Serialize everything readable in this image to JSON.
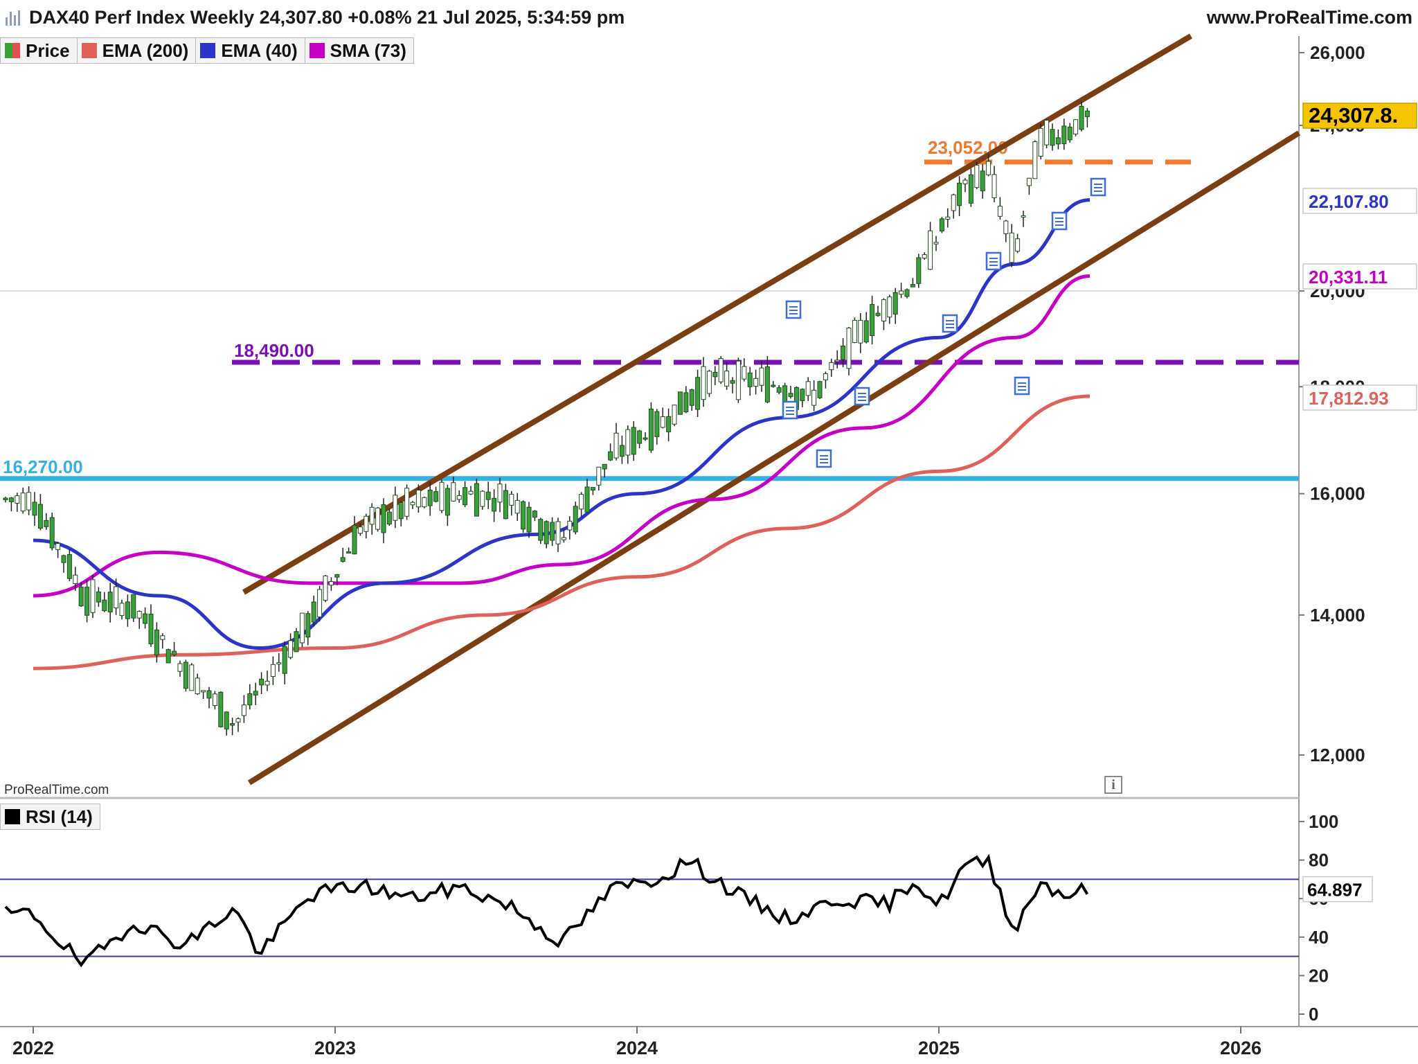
{
  "header": {
    "title": "DAX40 Perf Index Weekly 24,307.80 +0.08% 21 Jul 2025, 5:34:59 pm",
    "site": "www.ProRealTime.com"
  },
  "legend": [
    {
      "label": "Price",
      "color": "#3aa13a"
    },
    {
      "label": "EMA (200)",
      "color": "#e0605a"
    },
    {
      "label": "EMA (40)",
      "color": "#2b35c9"
    },
    {
      "label": "SMA (73)",
      "color": "#c600c6"
    }
  ],
  "rsi_legend": {
    "label": "RSI (14)",
    "color": "#000000"
  },
  "watermark": "ProRealTime.com",
  "colors": {
    "up": "#3aa13a",
    "down": "#c0392b",
    "channel": "#7a3e10",
    "ema200": "#e0605a",
    "ema40": "#2b35c9",
    "sma73": "#c600c6",
    "level_blue": "#38b0e6",
    "level_purple": "#7a10b8",
    "level_orange": "#f07a30",
    "last_price_bg": "#f6c500"
  },
  "price_axis": {
    "ticks": [
      "26,000",
      "24,000",
      "20,000",
      "18,000",
      "16,000",
      "14,000",
      "12,000"
    ],
    "tags": [
      {
        "text": "24,307.8.",
        "color": "#000000",
        "bg": "#f6c500"
      },
      {
        "text": "22,107.80",
        "color": "#2b35c9",
        "bg": "#ffffff"
      },
      {
        "text": "20,331.11",
        "color": "#c600c6",
        "bg": "#ffffff"
      },
      {
        "text": "17,812.93",
        "color": "#e0605a",
        "bg": "#ffffff"
      }
    ]
  },
  "levels": [
    {
      "value": "16,270.00",
      "color": "#38b0e6"
    },
    {
      "value": "18,490.00",
      "color": "#7a10b8"
    },
    {
      "value": "23,052.00",
      "color": "#f07a30"
    }
  ],
  "rsi_axis": {
    "ticks": [
      "100",
      "80",
      "60",
      "40",
      "20",
      "0"
    ],
    "last": "64.897"
  },
  "time_axis": [
    "2022",
    "2023",
    "2024",
    "2025",
    "2026"
  ],
  "chart_data": [
    {
      "type": "line",
      "title": "DAX40 Perf Index Weekly",
      "x_range": [
        "2022-01",
        "2026-01"
      ],
      "y_scale": "log",
      "ylim": [
        11500,
        26500
      ],
      "series": [
        {
          "name": "Price",
          "kind": "candlestick",
          "x": [
            "2022-01",
            "2022-03",
            "2022-05",
            "2022-07",
            "2022-09",
            "2022-10",
            "2022-12",
            "2023-02",
            "2023-04",
            "2023-06",
            "2023-08",
            "2023-10",
            "2023-12",
            "2024-02",
            "2024-04",
            "2024-06",
            "2024-08",
            "2024-10",
            "2024-12",
            "2025-02",
            "2025-03",
            "2025-04",
            "2025-05",
            "2025-06",
            "2025-07"
          ],
          "values": [
            15900,
            14300,
            14100,
            13200,
            12400,
            12900,
            13900,
            15400,
            15800,
            16000,
            15900,
            15200,
            16700,
            17300,
            18200,
            18100,
            17800,
            19200,
            20200,
            22400,
            22800,
            20700,
            23600,
            23800,
            24307.8
          ]
        },
        {
          "name": "EMA (200)",
          "x": [
            "2022-01",
            "2022-07",
            "2023-01",
            "2023-07",
            "2024-01",
            "2024-07",
            "2025-01",
            "2025-07"
          ],
          "values": [
            13200,
            13400,
            13500,
            14000,
            14600,
            15400,
            16400,
            17812.93
          ]
        },
        {
          "name": "EMA (40)",
          "x": [
            "2022-01",
            "2022-06",
            "2022-10",
            "2023-03",
            "2023-09",
            "2024-01",
            "2024-07",
            "2025-01",
            "2025-04",
            "2025-07"
          ],
          "values": [
            15200,
            14300,
            13500,
            14500,
            15300,
            16000,
            17400,
            19000,
            20600,
            22107.8
          ]
        },
        {
          "name": "SMA (73)",
          "x": [
            "2022-01",
            "2022-06",
            "2022-12",
            "2023-06",
            "2023-10",
            "2024-04",
            "2024-10",
            "2025-04",
            "2025-07"
          ],
          "values": [
            14300,
            15000,
            14500,
            14500,
            14800,
            15900,
            17200,
            19000,
            20331.11
          ]
        }
      ],
      "horizontal_levels": [
        16270,
        18490,
        23052
      ],
      "channel": {
        "upper": [
          [
            "2022-10",
            14200
          ],
          [
            "2025-07",
            26500
          ]
        ],
        "lower": [
          [
            "2022-10",
            11700
          ],
          [
            "2025-10",
            24900
          ]
        ]
      }
    },
    {
      "type": "line",
      "title": "RSI (14)",
      "ylim": [
        0,
        100
      ],
      "reference_lines": [
        30,
        70
      ],
      "series": [
        {
          "name": "RSI (14)",
          "x": [
            "2022-01",
            "2022-03",
            "2022-05",
            "2022-07",
            "2022-09",
            "2022-10",
            "2022-12",
            "2023-02",
            "2023-04",
            "2023-06",
            "2023-08",
            "2023-10",
            "2023-12",
            "2024-02",
            "2024-03",
            "2024-05",
            "2024-07",
            "2024-09",
            "2024-11",
            "2024-12",
            "2025-01",
            "2025-02",
            "2025-03",
            "2025-04",
            "2025-05",
            "2025-06",
            "2025-07"
          ],
          "values": [
            52,
            25,
            48,
            36,
            55,
            31,
            62,
            67,
            60,
            66,
            56,
            37,
            65,
            71,
            80,
            62,
            49,
            60,
            57,
            70,
            56,
            77,
            79,
            43,
            69,
            62,
            64.897
          ]
        }
      ]
    }
  ]
}
